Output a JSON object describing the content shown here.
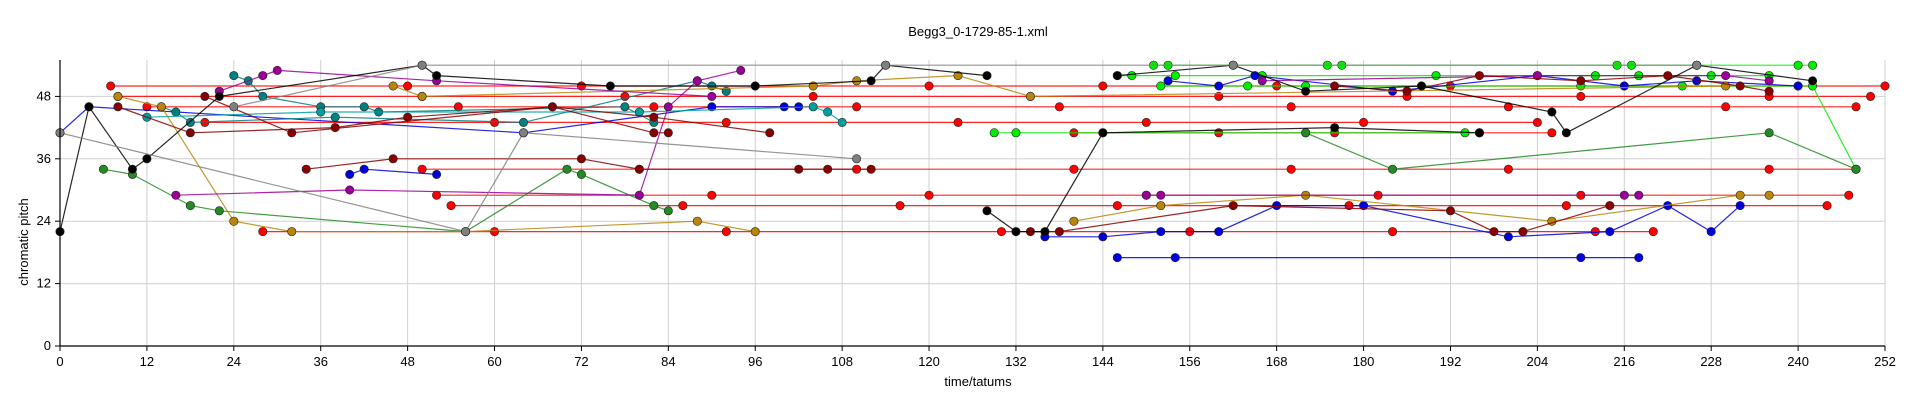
{
  "chart_data": {
    "type": "line",
    "title": "Begg3_0-1729-85-1.xml",
    "xlabel": "time/tatums",
    "ylabel": "chromatic pitch",
    "xlim": [
      0,
      252
    ],
    "ylim": [
      0,
      55
    ],
    "xticks": [
      0,
      12,
      24,
      36,
      48,
      60,
      72,
      84,
      96,
      108,
      120,
      132,
      144,
      156,
      168,
      180,
      192,
      204,
      216,
      228,
      240,
      252
    ],
    "yticks": [
      0,
      12,
      24,
      36,
      48
    ],
    "grid": true,
    "series": [
      {
        "color": "#ff0000",
        "points": [
          [
            7,
            50
          ],
          [
            48,
            50
          ],
          [
            72,
            50
          ],
          [
            96,
            50
          ],
          [
            120,
            50
          ],
          [
            144,
            50
          ],
          [
            168,
            50
          ],
          [
            192,
            50
          ],
          [
            216,
            50
          ],
          [
            240,
            50
          ],
          [
            252,
            50
          ]
        ]
      },
      {
        "color": "#ff0000",
        "points": [
          [
            8,
            48
          ],
          [
            50,
            48
          ],
          [
            78,
            48
          ],
          [
            104,
            48
          ],
          [
            134,
            48
          ],
          [
            160,
            48
          ],
          [
            186,
            48
          ],
          [
            210,
            48
          ],
          [
            236,
            48
          ],
          [
            250,
            48
          ]
        ]
      },
      {
        "color": "#ff0000",
        "points": [
          [
            12,
            46
          ],
          [
            55,
            46
          ],
          [
            82,
            46
          ],
          [
            110,
            46
          ],
          [
            138,
            46
          ],
          [
            170,
            46
          ],
          [
            200,
            46
          ],
          [
            230,
            46
          ],
          [
            248,
            46
          ]
        ]
      },
      {
        "color": "#ff0000",
        "points": [
          [
            20,
            43
          ],
          [
            60,
            43
          ],
          [
            92,
            43
          ],
          [
            124,
            43
          ],
          [
            150,
            43
          ],
          [
            180,
            43
          ],
          [
            204,
            43
          ]
        ]
      },
      {
        "color": "#ff0000",
        "points": [
          [
            50,
            34
          ],
          [
            80,
            34
          ],
          [
            110,
            34
          ],
          [
            140,
            34
          ],
          [
            170,
            34
          ],
          [
            200,
            34
          ],
          [
            236,
            34
          ],
          [
            248,
            34
          ]
        ]
      },
      {
        "color": "#ff0000",
        "points": [
          [
            52,
            29
          ],
          [
            90,
            29
          ],
          [
            120,
            29
          ],
          [
            150,
            29
          ],
          [
            182,
            29
          ],
          [
            210,
            29
          ],
          [
            247,
            29
          ]
        ]
      },
      {
        "color": "#ff0000",
        "points": [
          [
            54,
            27
          ],
          [
            86,
            27
          ],
          [
            116,
            27
          ],
          [
            146,
            27
          ],
          [
            178,
            27
          ],
          [
            208,
            27
          ],
          [
            244,
            27
          ]
        ]
      },
      {
        "color": "#ff0000",
        "points": [
          [
            28,
            22
          ],
          [
            60,
            22
          ],
          [
            92,
            22
          ],
          [
            130,
            22
          ],
          [
            156,
            22
          ],
          [
            184,
            22
          ],
          [
            212,
            22
          ],
          [
            220,
            22
          ]
        ]
      },
      {
        "color": "#ff0000",
        "points": [
          [
            140,
            41
          ],
          [
            160,
            41
          ],
          [
            176,
            41
          ],
          [
            196,
            41
          ],
          [
            206,
            41
          ]
        ]
      },
      {
        "color": "#00ee00",
        "points": [
          [
            129,
            41
          ],
          [
            132,
            41
          ],
          [
            144,
            41
          ],
          [
            172,
            41
          ],
          [
            194,
            41
          ],
          [
            196,
            41
          ]
        ]
      },
      {
        "color": "#00ee00",
        "points": [
          [
            151,
            54
          ],
          [
            153,
            54
          ],
          [
            162,
            54
          ],
          [
            175,
            54
          ],
          [
            177,
            54
          ],
          [
            215,
            54
          ],
          [
            217,
            54
          ],
          [
            226,
            54
          ],
          [
            240,
            54
          ],
          [
            242,
            54
          ]
        ]
      },
      {
        "color": "#00ee00",
        "points": [
          [
            146,
            52
          ],
          [
            148,
            52
          ],
          [
            154,
            52
          ],
          [
            166,
            52
          ],
          [
            190,
            52
          ],
          [
            212,
            52
          ],
          [
            218,
            52
          ],
          [
            228,
            52
          ],
          [
            236,
            52
          ]
        ]
      },
      {
        "color": "#00ee00",
        "points": [
          [
            152,
            50
          ],
          [
            164,
            50
          ],
          [
            172,
            50
          ],
          [
            188,
            50
          ],
          [
            210,
            50
          ],
          [
            224,
            50
          ],
          [
            242,
            50
          ],
          [
            248,
            34
          ]
        ]
      },
      {
        "color": "#0000dd",
        "points": [
          [
            0,
            41
          ],
          [
            4,
            46
          ],
          [
            64,
            41
          ],
          [
            90,
            46
          ],
          [
            100,
            46
          ],
          [
            102,
            46
          ]
        ]
      },
      {
        "color": "#0000dd",
        "points": [
          [
            40,
            33
          ],
          [
            42,
            34
          ],
          [
            52,
            33
          ]
        ]
      },
      {
        "color": "#0000dd",
        "points": [
          [
            146,
            17
          ],
          [
            154,
            17
          ],
          [
            210,
            17
          ],
          [
            218,
            17
          ]
        ]
      },
      {
        "color": "#0000dd",
        "points": [
          [
            136,
            21
          ],
          [
            144,
            21
          ],
          [
            152,
            22
          ],
          [
            160,
            22
          ],
          [
            168,
            27
          ],
          [
            180,
            27
          ],
          [
            200,
            21
          ],
          [
            214,
            22
          ],
          [
            222,
            27
          ],
          [
            228,
            22
          ],
          [
            232,
            27
          ]
        ]
      },
      {
        "color": "#0000dd",
        "points": [
          [
            153,
            51
          ],
          [
            160,
            50
          ],
          [
            165,
            52
          ],
          [
            184,
            49
          ],
          [
            204,
            52
          ],
          [
            216,
            50
          ],
          [
            226,
            51
          ],
          [
            240,
            50
          ]
        ]
      },
      {
        "color": "#008080",
        "points": [
          [
            24,
            52
          ],
          [
            26,
            51
          ],
          [
            28,
            48
          ],
          [
            36,
            46
          ],
          [
            42,
            46
          ],
          [
            44,
            45
          ],
          [
            78,
            46
          ],
          [
            82,
            43
          ]
        ]
      },
      {
        "color": "#008080",
        "points": [
          [
            14,
            46
          ],
          [
            16,
            45
          ],
          [
            18,
            43
          ],
          [
            38,
            44
          ],
          [
            64,
            43
          ],
          [
            88,
            51
          ],
          [
            90,
            50
          ],
          [
            92,
            49
          ]
        ]
      },
      {
        "color": "#00a0a0",
        "points": [
          [
            12,
            44
          ],
          [
            36,
            45
          ],
          [
            80,
            45
          ],
          [
            104,
            46
          ],
          [
            106,
            45
          ],
          [
            108,
            43
          ]
        ]
      },
      {
        "color": "#228b22",
        "points": [
          [
            6,
            34
          ],
          [
            10,
            33
          ],
          [
            18,
            27
          ],
          [
            22,
            26
          ],
          [
            56,
            22
          ],
          [
            70,
            34
          ],
          [
            72,
            33
          ],
          [
            82,
            27
          ],
          [
            84,
            26
          ]
        ]
      },
      {
        "color": "#228b22",
        "points": [
          [
            172,
            41
          ],
          [
            184,
            34
          ],
          [
            236,
            41
          ],
          [
            248,
            34
          ]
        ]
      },
      {
        "color": "#b8860b",
        "points": [
          [
            8,
            48
          ],
          [
            14,
            46
          ],
          [
            24,
            24
          ],
          [
            32,
            22
          ],
          [
            56,
            22
          ],
          [
            88,
            24
          ],
          [
            96,
            22
          ]
        ]
      },
      {
        "color": "#b8860b",
        "points": [
          [
            140,
            24
          ],
          [
            152,
            27
          ],
          [
            172,
            29
          ],
          [
            206,
            24
          ],
          [
            232,
            29
          ],
          [
            236,
            29
          ]
        ]
      },
      {
        "color": "#b8860b",
        "points": [
          [
            46,
            50
          ],
          [
            50,
            48
          ],
          [
            104,
            50
          ],
          [
            110,
            51
          ],
          [
            124,
            52
          ],
          [
            134,
            48
          ],
          [
            230,
            50
          ]
        ]
      },
      {
        "color": "#990099",
        "points": [
          [
            16,
            29
          ],
          [
            40,
            30
          ],
          [
            80,
            29
          ],
          [
            84,
            46
          ],
          [
            88,
            51
          ],
          [
            94,
            53
          ]
        ]
      },
      {
        "color": "#990099",
        "points": [
          [
            22,
            49
          ],
          [
            28,
            52
          ],
          [
            30,
            53
          ],
          [
            52,
            51
          ],
          [
            90,
            48
          ]
        ]
      },
      {
        "color": "#990099",
        "points": [
          [
            150,
            29
          ],
          [
            152,
            29
          ],
          [
            216,
            29
          ],
          [
            218,
            29
          ]
        ]
      },
      {
        "color": "#990099",
        "points": [
          [
            166,
            51
          ],
          [
            204,
            52
          ],
          [
            230,
            52
          ],
          [
            236,
            51
          ]
        ]
      },
      {
        "color": "#880000",
        "points": [
          [
            8,
            46
          ],
          [
            18,
            41
          ],
          [
            38,
            42
          ],
          [
            48,
            44
          ],
          [
            68,
            46
          ],
          [
            82,
            41
          ],
          [
            84,
            41
          ]
        ]
      },
      {
        "color": "#880000",
        "points": [
          [
            20,
            48
          ],
          [
            32,
            41
          ],
          [
            68,
            46
          ],
          [
            82,
            44
          ],
          [
            98,
            41
          ]
        ]
      },
      {
        "color": "#880000",
        "points": [
          [
            34,
            34
          ],
          [
            46,
            36
          ],
          [
            72,
            36
          ],
          [
            80,
            34
          ],
          [
            102,
            34
          ],
          [
            106,
            34
          ],
          [
            112,
            34
          ]
        ]
      },
      {
        "color": "#880000",
        "points": [
          [
            134,
            22
          ],
          [
            138,
            22
          ],
          [
            162,
            27
          ],
          [
            192,
            26
          ],
          [
            198,
            22
          ],
          [
            202,
            22
          ],
          [
            214,
            27
          ]
        ]
      },
      {
        "color": "#880000",
        "points": [
          [
            176,
            50
          ],
          [
            186,
            49
          ],
          [
            196,
            52
          ],
          [
            210,
            51
          ],
          [
            222,
            52
          ],
          [
            232,
            50
          ],
          [
            236,
            49
          ]
        ]
      },
      {
        "color": "#000000",
        "points": [
          [
            0,
            22
          ],
          [
            4,
            46
          ],
          [
            10,
            34
          ],
          [
            12,
            36
          ],
          [
            22,
            48
          ],
          [
            50,
            54
          ],
          [
            52,
            52
          ],
          [
            76,
            50
          ],
          [
            96,
            50
          ],
          [
            112,
            51
          ],
          [
            114,
            54
          ],
          [
            128,
            52
          ]
        ]
      },
      {
        "color": "#000000",
        "points": [
          [
            146,
            52
          ],
          [
            162,
            54
          ],
          [
            172,
            49
          ],
          [
            188,
            50
          ],
          [
            206,
            45
          ],
          [
            208,
            41
          ],
          [
            226,
            54
          ],
          [
            242,
            51
          ]
        ]
      },
      {
        "color": "#000000",
        "points": [
          [
            128,
            26
          ],
          [
            132,
            22
          ],
          [
            136,
            22
          ],
          [
            144,
            41
          ],
          [
            176,
            42
          ],
          [
            196,
            41
          ]
        ]
      },
      {
        "color": "#808080",
        "points": [
          [
            0,
            41
          ],
          [
            56,
            22
          ],
          [
            64,
            41
          ],
          [
            110,
            36
          ]
        ]
      },
      {
        "color": "#808080",
        "points": [
          [
            24,
            46
          ],
          [
            50,
            54
          ],
          [
            114,
            54
          ],
          [
            162,
            54
          ],
          [
            226,
            54
          ]
        ]
      }
    ]
  }
}
